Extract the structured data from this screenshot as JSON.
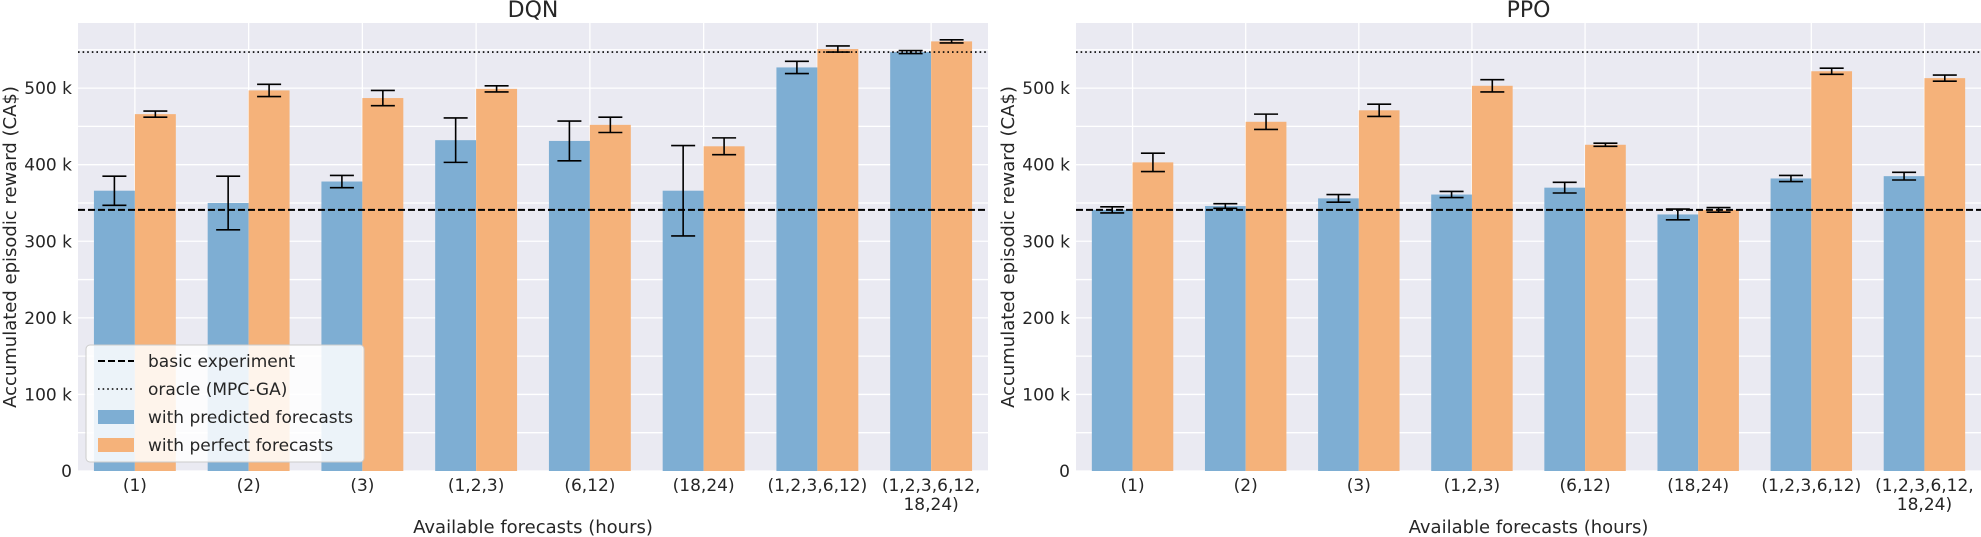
{
  "colors": {
    "predicted": "#7eaed3",
    "perfect": "#f5b27a",
    "errorbar": "#000000",
    "background": "#eaeaf2"
  },
  "chart_data": [
    {
      "type": "bar",
      "title": "DQN",
      "xlabel": "Available forecasts (hours)",
      "ylabel": "Accumulated episodic reward (CA$)",
      "ylim": [
        0,
        585000
      ],
      "yticks": [
        0,
        100000,
        200000,
        300000,
        400000,
        500000
      ],
      "ytick_labels": [
        "0",
        "100 k",
        "200 k",
        "300 k",
        "400 k",
        "500 k"
      ],
      "categories": [
        "(1)",
        "(2)",
        "(3)",
        "(1,2,3)",
        "(6,12)",
        "(18,24)",
        "(1,2,3,6,12)",
        "(1,2,3,6,12,\n18,24)"
      ],
      "series": [
        {
          "name": "with predicted forecasts",
          "values": [
            366000,
            350000,
            378000,
            432000,
            431000,
            366000,
            527000,
            547000
          ],
          "errors": [
            19000,
            35000,
            8000,
            29000,
            26000,
            59000,
            8000,
            2000
          ]
        },
        {
          "name": "with perfect forecasts",
          "values": [
            466000,
            497000,
            487000,
            499000,
            452000,
            424000,
            551000,
            561000
          ],
          "errors": [
            4000,
            8000,
            10000,
            4000,
            10000,
            11000,
            4000,
            2000
          ]
        }
      ],
      "reference_lines": [
        {
          "name": "basic experiment",
          "value": 341000,
          "style": "dashed"
        },
        {
          "name": "oracle (MPC-GA)",
          "value": 547000,
          "style": "dotted"
        }
      ],
      "legend": {
        "placement": "lower-left",
        "entries": [
          "basic experiment",
          "oracle (MPC-GA)",
          "with predicted forecasts",
          "with perfect forecasts"
        ]
      }
    },
    {
      "type": "bar",
      "title": "PPO",
      "xlabel": "Available forecasts (hours)",
      "ylabel": "Accumulated episodic reward (CA$)",
      "ylim": [
        0,
        585000
      ],
      "yticks": [
        0,
        100000,
        200000,
        300000,
        400000,
        500000
      ],
      "ytick_labels": [
        "0",
        "100 k",
        "200 k",
        "300 k",
        "400 k",
        "500 k"
      ],
      "categories": [
        "(1)",
        "(2)",
        "(3)",
        "(1,2,3)",
        "(6,12)",
        "(18,24)",
        "(1,2,3,6,12)",
        "(1,2,3,6,12,\n18,24)"
      ],
      "series": [
        {
          "name": "with predicted forecasts",
          "values": [
            341000,
            346000,
            356000,
            361000,
            370000,
            335000,
            382000,
            385000
          ],
          "errors": [
            4000,
            3000,
            5000,
            4000,
            7000,
            7000,
            4000,
            5000
          ]
        },
        {
          "name": "with perfect forecasts",
          "values": [
            403000,
            456000,
            471000,
            503000,
            426000,
            341000,
            522000,
            513000
          ],
          "errors": [
            12000,
            10000,
            8000,
            8000,
            2000,
            3000,
            4000,
            4000
          ]
        }
      ],
      "reference_lines": [
        {
          "name": "basic experiment",
          "value": 341000,
          "style": "dashed"
        },
        {
          "name": "oracle (MPC-GA)",
          "value": 547000,
          "style": "dotted"
        }
      ]
    }
  ]
}
